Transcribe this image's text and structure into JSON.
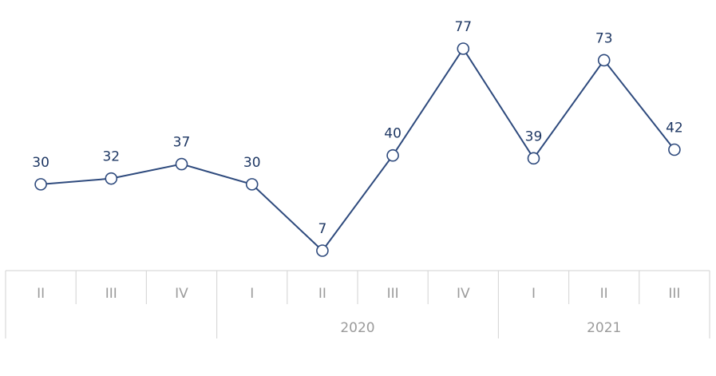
{
  "chart_data": {
    "type": "line",
    "title": "",
    "xlabel": "",
    "ylabel": "",
    "ylim": [
      7,
      77
    ],
    "categories": [
      "II",
      "III",
      "IV",
      "I",
      "II",
      "III",
      "IV",
      "I",
      "II",
      "III"
    ],
    "year_groups": [
      {
        "label": "",
        "start": 0,
        "end": 2
      },
      {
        "label": "2020",
        "start": 3,
        "end": 6
      },
      {
        "label": "2021",
        "start": 7,
        "end": 9
      }
    ],
    "series": [
      {
        "values": [
          30,
          32,
          37,
          30,
          7,
          40,
          77,
          39,
          73,
          42
        ]
      }
    ],
    "marker": "open-circle",
    "data_labels": true,
    "grid": false,
    "colors": {
      "series": "#2e4a7d",
      "data_label": "#1f3864",
      "axis": "#d9d9d9",
      "tick_label": "#9b9b9b"
    }
  }
}
